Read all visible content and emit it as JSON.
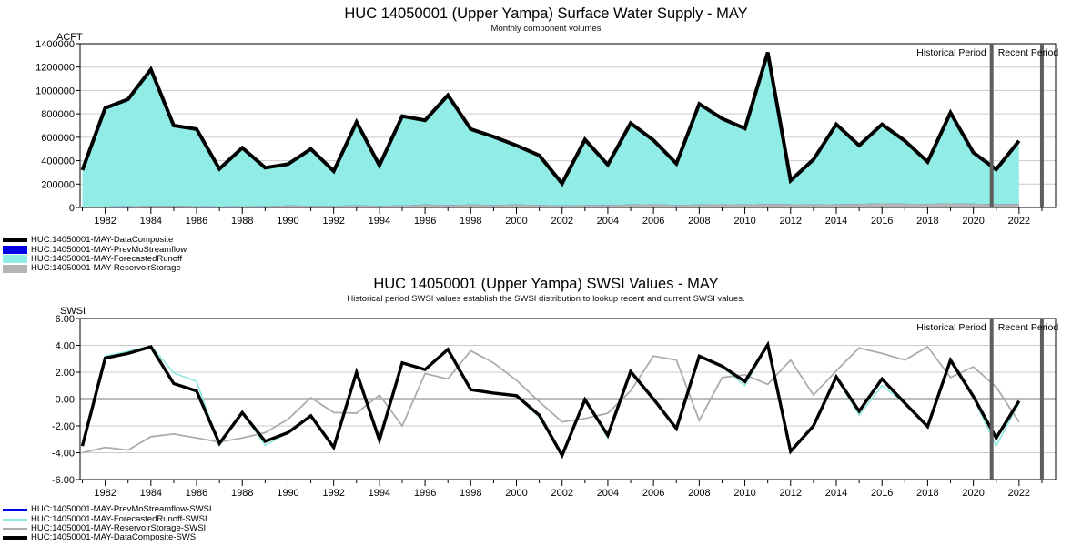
{
  "chart_data": [
    {
      "id": "supply",
      "type": "area",
      "title": "HUC 14050001 (Upper Yampa) Surface Water Supply - MAY",
      "subtitle": "Monthly component volumes",
      "unit_label": "ACFT",
      "period_labels": [
        "Historical Period",
        "Recent Period"
      ],
      "x_range": [
        1980.9,
        2023.6
      ],
      "dividers": [
        2020.8,
        2023.0
      ],
      "ylim": [
        0,
        1400000
      ],
      "zero_line": false,
      "y_ticks": [
        {
          "v": 0,
          "label": "0"
        },
        {
          "v": 200000,
          "label": "200000"
        },
        {
          "v": 400000,
          "label": "400000"
        },
        {
          "v": 600000,
          "label": "600000"
        },
        {
          "v": 800000,
          "label": "800000"
        },
        {
          "v": 1000000,
          "label": "1000000"
        },
        {
          "v": 1200000,
          "label": "1200000"
        },
        {
          "v": 1400000,
          "label": "1400000"
        }
      ],
      "x_labeled": [
        1982,
        1984,
        1986,
        1988,
        1990,
        1992,
        1994,
        1996,
        1998,
        2000,
        2002,
        2004,
        2006,
        2008,
        2010,
        2012,
        2014,
        2016,
        2018,
        2020,
        2022
      ],
      "x": [
        1981,
        1982,
        1983,
        1984,
        1985,
        1986,
        1987,
        1988,
        1989,
        1990,
        1991,
        1992,
        1993,
        1994,
        1995,
        1996,
        1997,
        1998,
        1999,
        2000,
        2001,
        2002,
        2003,
        2004,
        2005,
        2006,
        2007,
        2008,
        2009,
        2010,
        2011,
        2012,
        2013,
        2014,
        2015,
        2016,
        2017,
        2018,
        2019,
        2020,
        2021,
        2022
      ],
      "series": [
        {
          "name": "HUC:14050001-MAY-ForecastedRunoff",
          "kind": "area",
          "color": "#90ECE4",
          "stroke_width": 0,
          "values": [
            320000,
            850000,
            925000,
            1180000,
            700000,
            670000,
            330000,
            510000,
            340000,
            370000,
            500000,
            310000,
            730000,
            360000,
            780000,
            745000,
            960000,
            670000,
            605000,
            530000,
            445000,
            205000,
            580000,
            365000,
            720000,
            575000,
            375000,
            885000,
            760000,
            675000,
            1325000,
            230000,
            410000,
            710000,
            530000,
            710000,
            570000,
            390000,
            810000,
            470000,
            325000,
            570000
          ]
        },
        {
          "name": "HUC:14050001-MAY-PrevMoStreamflow",
          "kind": "area",
          "color": "#0000E8",
          "stroke_width": 0,
          "values": [
            5000,
            8000,
            10000,
            15000,
            15000,
            12000,
            8000,
            12000,
            10000,
            18000,
            15000,
            15000,
            18000,
            15000,
            18000,
            25000,
            22000,
            25000,
            22000,
            25000,
            22000,
            18000,
            20000,
            22000,
            25000,
            28000,
            22000,
            25000,
            28000,
            25000,
            30000,
            28000,
            25000,
            28000,
            30000,
            35000,
            32000,
            30000,
            35000,
            32000,
            28000,
            30000
          ]
        },
        {
          "name": "HUC:14050001-MAY-ReservoirStorage",
          "kind": "area",
          "color": "#B4B4B4",
          "stroke_width": 0,
          "values": [
            5000,
            8000,
            10000,
            15000,
            15000,
            12000,
            8000,
            12000,
            10000,
            18000,
            15000,
            15000,
            18000,
            15000,
            18000,
            25000,
            22000,
            25000,
            22000,
            25000,
            22000,
            18000,
            20000,
            22000,
            25000,
            28000,
            22000,
            25000,
            28000,
            25000,
            30000,
            28000,
            25000,
            28000,
            30000,
            35000,
            32000,
            30000,
            35000,
            32000,
            28000,
            30000
          ]
        },
        {
          "name": "HUC:14050001-MAY-DataComposite",
          "kind": "line",
          "color": "#000000",
          "stroke_width": 4,
          "values": [
            320000,
            850000,
            925000,
            1180000,
            700000,
            670000,
            330000,
            510000,
            340000,
            370000,
            500000,
            310000,
            730000,
            360000,
            780000,
            745000,
            960000,
            670000,
            605000,
            530000,
            445000,
            205000,
            580000,
            365000,
            720000,
            575000,
            375000,
            885000,
            760000,
            675000,
            1325000,
            230000,
            410000,
            710000,
            530000,
            710000,
            570000,
            390000,
            810000,
            470000,
            325000,
            570000
          ]
        }
      ],
      "legend": [
        {
          "label": "HUC:14050001-MAY-DataComposite",
          "color": "#000000",
          "swatch": "thickline"
        },
        {
          "label": "HUC:14050001-MAY-PrevMoStreamflow",
          "color": "#0000E8",
          "swatch": "box"
        },
        {
          "label": "HUC:14050001-MAY-ForecastedRunoff",
          "color": "#90ECE4",
          "swatch": "box"
        },
        {
          "label": "HUC:14050001-MAY-ReservoirStorage",
          "color": "#B4B4B4",
          "swatch": "box"
        }
      ]
    },
    {
      "id": "swsi",
      "type": "line",
      "title": "HUC 14050001 (Upper Yampa) SWSI Values - MAY",
      "subtitle": "Historical period SWSI values establish the SWSI distribution to lookup recent and current SWSI values.",
      "unit_label": "SWSI",
      "period_labels": [
        "Historical Period",
        "Recent Period"
      ],
      "x_range": [
        1980.9,
        2023.6
      ],
      "dividers": [
        2020.8,
        2023.0
      ],
      "ylim": [
        -6,
        6
      ],
      "zero_line": true,
      "y_ticks": [
        {
          "v": -6,
          "label": "-6.00"
        },
        {
          "v": -4,
          "label": "-4.00"
        },
        {
          "v": -2,
          "label": "-2.00"
        },
        {
          "v": 0,
          "label": "0.00"
        },
        {
          "v": 2,
          "label": "2.00"
        },
        {
          "v": 4,
          "label": "4.00"
        },
        {
          "v": 6,
          "label": "6.00"
        }
      ],
      "x_labeled": [
        1982,
        1984,
        1986,
        1988,
        1990,
        1992,
        1994,
        1996,
        1998,
        2000,
        2002,
        2004,
        2006,
        2008,
        2010,
        2012,
        2014,
        2016,
        2018,
        2020,
        2022
      ],
      "x": [
        1981,
        1982,
        1983,
        1984,
        1985,
        1986,
        1987,
        1988,
        1989,
        1990,
        1991,
        1992,
        1993,
        1994,
        1995,
        1996,
        1997,
        1998,
        1999,
        2000,
        2001,
        2002,
        2003,
        2004,
        2005,
        2006,
        2007,
        2008,
        2009,
        2010,
        2011,
        2012,
        2013,
        2014,
        2015,
        2016,
        2017,
        2018,
        2019,
        2020,
        2021,
        2022
      ],
      "series": [
        {
          "name": "HUC:14050001-MAY-PrevMoStreamflow-SWSI",
          "kind": "line",
          "color": "#0000E8",
          "stroke_width": 1.6,
          "values": [
            -3.5,
            3.05,
            3.4,
            3.9,
            1.15,
            0.6,
            -3.3,
            -1.0,
            -3.15,
            -2.5,
            -1.25,
            -3.6,
            2.0,
            -3.05,
            2.7,
            2.2,
            3.7,
            0.7,
            0.45,
            0.25,
            -1.2,
            -4.2,
            -0.05,
            -2.7,
            2.05,
            0.0,
            -2.2,
            3.2,
            2.45,
            1.3,
            4.05,
            -3.9,
            -2.0,
            1.65,
            -0.9,
            1.5,
            -0.3,
            -2.05,
            2.9,
            0.2,
            -2.9,
            -0.15
          ]
        },
        {
          "name": "HUC:14050001-MAY-ForecastedRunoff-SWSI",
          "kind": "line",
          "color": "#8FE8E0",
          "stroke_width": 1.6,
          "values": [
            -3.5,
            3.2,
            3.55,
            3.95,
            1.95,
            1.3,
            -3.45,
            -1.0,
            -3.45,
            -2.5,
            -1.25,
            -3.7,
            2.0,
            -3.25,
            2.7,
            2.2,
            3.7,
            0.65,
            0.4,
            0.2,
            -1.35,
            -4.35,
            -0.05,
            -2.9,
            2.05,
            0.0,
            -2.25,
            3.2,
            2.4,
            1.0,
            4.05,
            -3.95,
            -2.0,
            1.65,
            -1.2,
            1.0,
            -0.3,
            -2.1,
            2.9,
            0.1,
            -3.5,
            -0.3
          ]
        },
        {
          "name": "HUC:14050001-MAY-ReservoirStorage-SWSI",
          "kind": "line",
          "color": "#ACACAC",
          "stroke_width": 1.8,
          "values": [
            -4.0,
            -3.6,
            -3.8,
            -2.8,
            -2.6,
            -2.9,
            -3.2,
            -2.9,
            -2.5,
            -1.5,
            0.1,
            -1.0,
            -1.05,
            0.3,
            -2.0,
            1.9,
            1.5,
            3.6,
            2.7,
            1.4,
            -0.2,
            -1.7,
            -1.45,
            -1.05,
            0.6,
            3.2,
            2.9,
            -1.6,
            1.6,
            1.8,
            1.1,
            2.9,
            0.3,
            2.1,
            3.8,
            3.4,
            2.9,
            3.9,
            1.6,
            2.4,
            0.9,
            -1.7
          ]
        },
        {
          "name": "HUC:14050001-MAY-DataComposite-SWSI",
          "kind": "line",
          "color": "#000000",
          "stroke_width": 3.4,
          "values": [
            -3.5,
            3.05,
            3.4,
            3.9,
            1.15,
            0.6,
            -3.3,
            -1.0,
            -3.15,
            -2.5,
            -1.25,
            -3.6,
            2.0,
            -3.05,
            2.7,
            2.2,
            3.7,
            0.7,
            0.45,
            0.25,
            -1.2,
            -4.2,
            -0.05,
            -2.7,
            2.05,
            0.0,
            -2.2,
            3.2,
            2.45,
            1.3,
            4.05,
            -3.9,
            -2.0,
            1.65,
            -0.9,
            1.5,
            -0.3,
            -2.05,
            2.9,
            0.2,
            -2.9,
            -0.15
          ]
        }
      ],
      "legend": [
        {
          "label": "HUC:14050001-MAY-PrevMoStreamflow-SWSI",
          "color": "#0000E8",
          "swatch": "line"
        },
        {
          "label": "HUC:14050001-MAY-ForecastedRunoff-SWSI",
          "color": "#8FE8E0",
          "swatch": "line"
        },
        {
          "label": "HUC:14050001-MAY-ReservoirStorage-SWSI",
          "color": "#ACACAC",
          "swatch": "line"
        },
        {
          "label": "HUC:14050001-MAY-DataComposite-SWSI",
          "color": "#000000",
          "swatch": "thickline"
        }
      ]
    }
  ]
}
